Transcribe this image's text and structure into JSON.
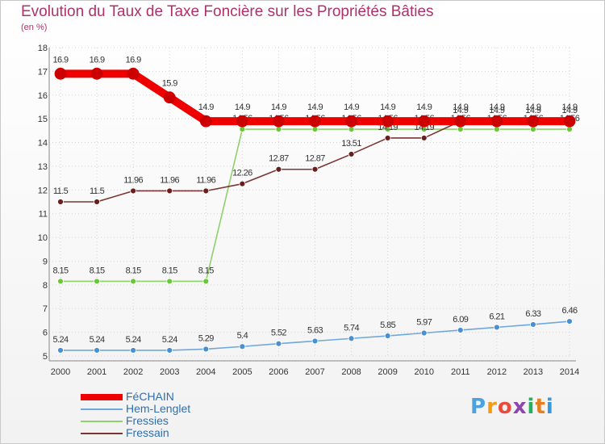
{
  "title": "Evolution du Taux de Taxe Foncière sur les Propriétés Bâties",
  "subtitle": "(en %)",
  "chart_data": {
    "type": "line",
    "title": "Evolution du Taux de Taxe Foncière sur les Propriétés Bâties",
    "ylabel": "(en %)",
    "xlabel": "",
    "ylim": [
      5,
      18
    ],
    "yticks": [
      5,
      6,
      7,
      8,
      9,
      10,
      11,
      12,
      13,
      14,
      15,
      16,
      17,
      18
    ],
    "x": [
      "2000",
      "2001",
      "2002",
      "2003",
      "2004",
      "2005",
      "2006",
      "2007",
      "2008",
      "2009",
      "2010",
      "2011",
      "2012",
      "2013",
      "2014"
    ],
    "series": [
      {
        "name": "Hem-Lenglet",
        "color": "#6fa8dc",
        "marker": "#4a90d0",
        "labels": [
          "5.24",
          "5.24",
          "5.24",
          "5.24",
          "5.29",
          "5.4",
          "5.52",
          "5.63",
          "5.74",
          "5.85",
          "5.97",
          "6.09",
          "6.21",
          "6.33",
          "6.46"
        ],
        "values": [
          5.24,
          5.24,
          5.24,
          5.24,
          5.29,
          5.4,
          5.52,
          5.63,
          5.74,
          5.85,
          5.97,
          6.09,
          6.21,
          6.33,
          6.46
        ]
      },
      {
        "name": "Fressies",
        "color": "#8fd16a",
        "marker": "#6cc63c",
        "labels": [
          "8.15",
          "8.15",
          "8.15",
          "8.15",
          "8.15",
          "14.56",
          "14.56",
          "14.56",
          "14.56",
          "14.56",
          "14.56",
          "14.56",
          "14.56",
          "14.56",
          "14.56"
        ],
        "values": [
          8.15,
          8.15,
          8.15,
          8.15,
          8.15,
          14.56,
          14.56,
          14.56,
          14.56,
          14.56,
          14.56,
          14.56,
          14.56,
          14.56,
          14.56
        ]
      },
      {
        "name": "Fressain",
        "color": "#7a3535",
        "marker": "#6a1f1f",
        "labels": [
          "11.5",
          "11.5",
          "11.96",
          "11.96",
          "11.96",
          "12.26",
          "12.87",
          "12.87",
          "13.51",
          "14.19",
          "14.19",
          "14.9",
          "14.9",
          "14.9",
          "14.9"
        ],
        "values": [
          11.5,
          11.5,
          11.96,
          11.96,
          11.96,
          12.26,
          12.87,
          12.87,
          13.51,
          14.19,
          14.19,
          14.9,
          14.9,
          14.9,
          14.9
        ]
      },
      {
        "name": "FéCHAIN",
        "color": "#ee0000",
        "marker": "#cc0000",
        "labels": [
          "16.9",
          "16.9",
          "16.9",
          "15.9",
          "14.9",
          "14.9",
          "14.9",
          "14.9",
          "14.9",
          "14.9",
          "14.9",
          "14.9",
          "14.9",
          "14.9",
          "14.9"
        ],
        "values": [
          16.9,
          16.9,
          16.9,
          15.9,
          14.9,
          14.9,
          14.9,
          14.9,
          14.9,
          14.9,
          14.9,
          14.9,
          14.9,
          14.9,
          14.9
        ]
      }
    ],
    "legend": [
      "FéCHAIN",
      "Hem-Lenglet",
      "Fressies",
      "Fressain"
    ],
    "legend_position": "bottom-left",
    "grid": true
  },
  "logo": {
    "letters": [
      "P",
      "r",
      "o",
      "x",
      "i",
      "t",
      "i"
    ],
    "colors": [
      "#4aa3df",
      "#f39c12",
      "#e74c3c",
      "#8e44ad",
      "#27ae60",
      "#f1c40f",
      "#3498db"
    ]
  }
}
